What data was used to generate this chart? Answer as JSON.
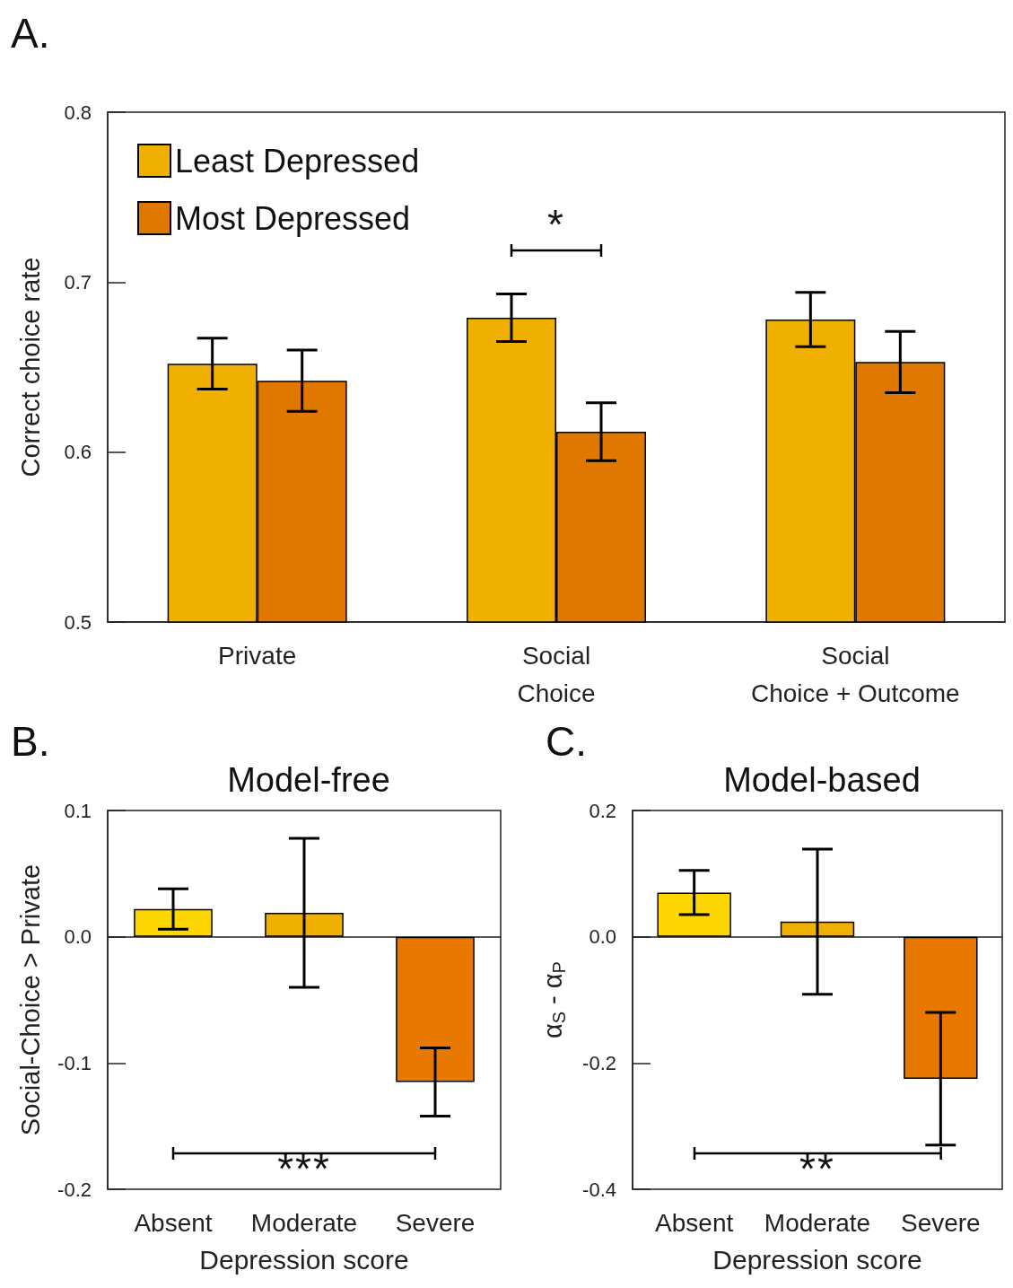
{
  "chart_data": [
    {
      "type": "bar",
      "ylabel": "Correct choice rate",
      "categories": [
        "Private",
        "Social\nChoice",
        "Social\nChoice + Outcome"
      ],
      "series": [
        {
          "name": "Least Depressed",
          "color": "#f0b000",
          "values": [
            0.652,
            0.679,
            0.678
          ],
          "errors": [
            0.015,
            0.014,
            0.016
          ]
        },
        {
          "name": "Most Depressed",
          "color": "#e07800",
          "values": [
            0.642,
            0.612,
            0.653
          ],
          "errors": [
            0.018,
            0.017,
            0.018
          ]
        }
      ],
      "ylim": [
        0.5,
        0.8
      ],
      "yticks": [
        0.5,
        0.6,
        0.7,
        0.8
      ],
      "legend": "top left",
      "annotations": [
        "A.",
        "*"
      ]
    },
    {
      "type": "bar",
      "title": "Model-free",
      "xlabel": "Depression score",
      "ylabel": "Social-Choice > Private",
      "categories": [
        "Absent",
        "Moderate",
        "Severe"
      ],
      "values": [
        0.022,
        0.019,
        -0.115
      ],
      "colors": [
        "#ffd700",
        "#f0b000",
        "#e87800"
      ],
      "errors": [
        0.016,
        0.059,
        0.027
      ],
      "ylim": [
        -0.2,
        0.1
      ],
      "yticks": [
        -0.2,
        -0.1,
        {
          "value": 0,
          "label": "0.0"
        },
        0.1
      ],
      "annotations": [
        "B.",
        "***"
      ]
    },
    {
      "type": "bar",
      "title": "Model-based",
      "xlabel": "Depression score",
      "ylabel": "α$_{S}$ - α$_{P}$",
      "categories": [
        "Absent",
        "Moderate",
        "Severe"
      ],
      "values": [
        0.07,
        0.024,
        -0.225
      ],
      "colors": [
        "#ffd700",
        "#f0b000",
        "#e87800"
      ],
      "errors": [
        0.035,
        0.115,
        0.105
      ],
      "ylim": [
        -0.4,
        0.2
      ],
      "yticks": [
        -0.4,
        -0.2,
        {
          "value": 0,
          "label": "0.0"
        },
        0.2
      ],
      "annotations": [
        "C.",
        "**"
      ]
    }
  ]
}
